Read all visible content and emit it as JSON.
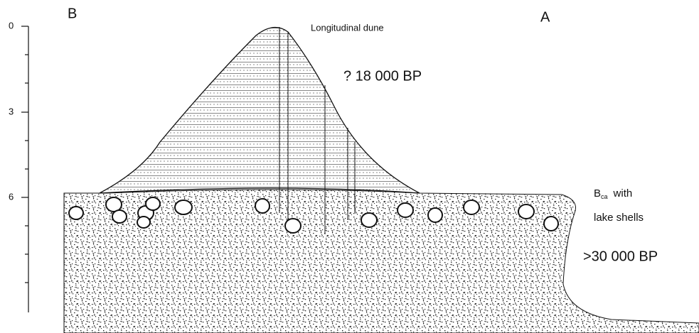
{
  "labels": {
    "left_end": "B",
    "right_end": "A",
    "dune": "Longitudinal dune",
    "dune_age": "? 18 000 BP",
    "horizon": "B",
    "horizon_sub": "ca",
    "horizon_text": "with",
    "horizon_text2": "lake shells",
    "base_age": ">30 000 BP"
  },
  "scale": {
    "ticks": [
      0,
      3,
      6
    ]
  }
}
